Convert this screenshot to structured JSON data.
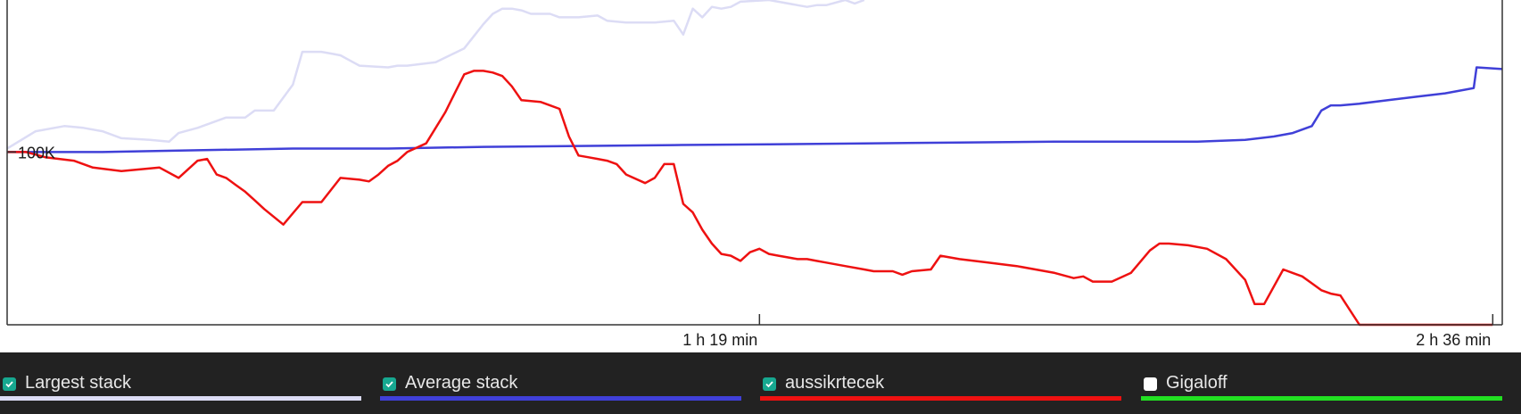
{
  "chart_data": {
    "type": "line",
    "xlabel": "",
    "ylabel": "",
    "x_ticks": [
      "1 h 19 min",
      "2 h 36 min"
    ],
    "x_tick_values": [
      79,
      156
    ],
    "y_ticks": [
      "100K"
    ],
    "y_tick_values": [
      100
    ],
    "xlim": [
      0,
      157
    ],
    "ylim": [
      0,
      188
    ],
    "grid": false,
    "legend_position": "bottom",
    "series": [
      {
        "name": "Largest stack",
        "color": "#dcdcf5",
        "visible": true,
        "x": [
          0,
          3,
          6,
          8,
          10,
          12,
          15,
          17,
          18,
          20,
          23,
          25,
          26,
          28,
          30,
          31,
          33,
          34,
          35,
          36,
          37,
          40,
          41,
          42,
          45,
          48,
          49,
          50,
          51,
          52,
          53,
          54,
          55,
          57,
          58,
          60,
          62,
          63,
          65,
          68,
          70,
          71,
          72,
          73,
          74,
          75,
          76,
          77,
          80,
          83,
          84,
          85,
          86,
          88,
          89,
          90
        ],
        "y": [
          102,
          112,
          115,
          114,
          112,
          108,
          107,
          106,
          111,
          114,
          120,
          120,
          124,
          124,
          139,
          158,
          158,
          157,
          156,
          153,
          150,
          149,
          150,
          150,
          152,
          160,
          167,
          174,
          180,
          183,
          183,
          182,
          180,
          180,
          178,
          178,
          179,
          176,
          175,
          175,
          176,
          168,
          183,
          178,
          184,
          183,
          184,
          187,
          188,
          185,
          184,
          185,
          185,
          188,
          186,
          188
        ]
      },
      {
        "name": "Average stack",
        "color": "#4040d8",
        "visible": true,
        "x": [
          0,
          10,
          20,
          30,
          40,
          50,
          60,
          70,
          80,
          90,
          100,
          110,
          120,
          125,
          130,
          133,
          135,
          137,
          138,
          139,
          140,
          142,
          145,
          148,
          151,
          154,
          154.3,
          157
        ],
        "y": [
          100,
          100,
          101,
          102,
          102,
          103,
          103.5,
          104,
          104.5,
          105,
          105.5,
          106,
          106,
          106,
          107,
          109,
          111,
          115,
          124,
          127,
          127,
          128,
          130,
          132,
          134,
          137,
          149,
          148
        ]
      },
      {
        "name": "aussikrtecek",
        "color": "#ee1111",
        "visible": true,
        "x": [
          0,
          2,
          4,
          7,
          9,
          12,
          14,
          16,
          18,
          20,
          21,
          22,
          23,
          24,
          25,
          26,
          27,
          29,
          31,
          33,
          35,
          37,
          38,
          39,
          40,
          41,
          42,
          44,
          46,
          47,
          48,
          49,
          50,
          51,
          52,
          53,
          54,
          56,
          57,
          58,
          59,
          60,
          61,
          62,
          63,
          64,
          65,
          67,
          68,
          69,
          70,
          71,
          72,
          73,
          74,
          75,
          76,
          77,
          78,
          79,
          80,
          81,
          82,
          83,
          84,
          85,
          86,
          88,
          90,
          91,
          93,
          94,
          95,
          97,
          98,
          100,
          103,
          106,
          110,
          112,
          113,
          114,
          116,
          118,
          120,
          121,
          122,
          124,
          126,
          128,
          130,
          131,
          132,
          134,
          135,
          136,
          137,
          138,
          139,
          140,
          142,
          143,
          144,
          145,
          146,
          147,
          148,
          148.5,
          149,
          150,
          151,
          152,
          153,
          154,
          156
        ],
        "y": [
          100,
          100,
          97,
          95,
          91,
          89,
          90,
          91,
          85,
          95,
          96,
          87,
          85,
          81,
          77,
          72,
          67,
          58,
          71,
          71,
          85,
          84,
          83,
          87,
          92,
          95,
          100,
          105,
          123,
          134,
          145,
          147,
          147,
          146,
          144,
          138,
          130,
          129,
          127,
          125,
          109,
          98,
          97,
          96,
          95,
          93,
          87,
          82,
          85,
          93,
          93,
          70,
          65,
          55,
          47,
          41,
          40,
          37,
          42,
          44,
          41,
          40,
          39,
          38,
          38,
          37,
          36,
          34,
          32,
          31,
          31,
          29,
          31,
          32,
          40,
          38,
          36,
          34,
          30,
          27,
          28,
          25,
          25,
          30,
          43,
          47,
          47,
          46,
          44,
          38,
          26,
          12,
          12,
          32,
          30,
          28,
          24,
          20,
          18,
          17,
          0,
          0,
          0,
          0,
          0,
          0,
          0,
          0,
          0,
          0,
          0,
          0,
          0,
          0,
          0
        ]
      },
      {
        "name": "Gigaloff",
        "color": "#22e022",
        "visible": false,
        "x": [],
        "y": []
      }
    ]
  },
  "legend": [
    {
      "label": "Largest stack",
      "checked": true,
      "color": "#dcdcf5"
    },
    {
      "label": "Average stack",
      "checked": true,
      "color": "#4040d8"
    },
    {
      "label": "aussikrtecek",
      "checked": true,
      "color": "#ee1111"
    },
    {
      "label": "Gigaloff",
      "checked": false,
      "color": "#22e022"
    }
  ]
}
